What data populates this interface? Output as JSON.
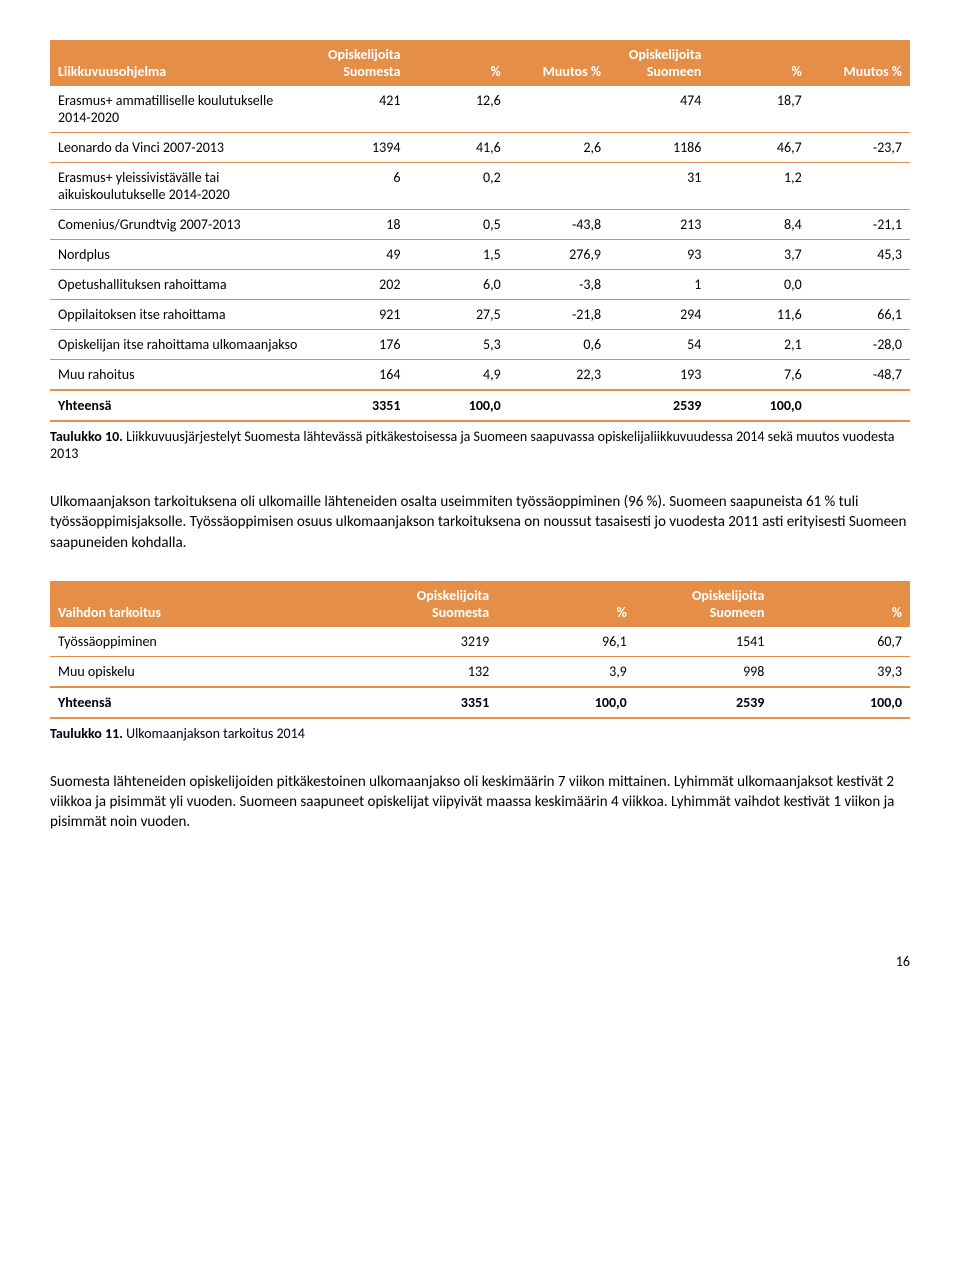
{
  "table1": {
    "headers": [
      "Liikkuvuusohjelma",
      "Opiskelijoita Suomesta",
      "%",
      "Muutos %",
      "Opiskelijoita Suomeen",
      "%",
      "Muutos %"
    ],
    "rows": [
      [
        "Erasmus+ ammatilliselle koulutukselle 2014-2020",
        "421",
        "12,6",
        "",
        "474",
        "18,7",
        ""
      ],
      [
        "Leonardo da Vinci 2007-2013",
        "1394",
        "41,6",
        "2,6",
        "1186",
        "46,7",
        "-23,7"
      ],
      [
        "Erasmus+ yleissivistävälle tai aikuiskoulutukselle 2014-2020",
        "6",
        "0,2",
        "",
        "31",
        "1,2",
        ""
      ],
      [
        "Comenius/Grundtvig 2007-2013",
        "18",
        "0,5",
        "-43,8",
        "213",
        "8,4",
        "-21,1"
      ],
      [
        "Nordplus",
        "49",
        "1,5",
        "276,9",
        "93",
        "3,7",
        "45,3"
      ],
      [
        "Opetushallituksen rahoittama",
        "202",
        "6,0",
        "-3,8",
        "1",
        "0,0",
        ""
      ],
      [
        "Oppilaitoksen itse rahoittama",
        "921",
        "27,5",
        "-21,8",
        "294",
        "11,6",
        "66,1"
      ],
      [
        "Opiskelijan itse rahoittama ulkomaanjakso",
        "176",
        "5,3",
        "0,6",
        "54",
        "2,1",
        "-28,0"
      ],
      [
        "Muu rahoitus",
        "164",
        "4,9",
        "22,3",
        "193",
        "7,6",
        "-48,7"
      ]
    ],
    "total": [
      "Yhteensä",
      "3351",
      "100,0",
      "",
      "2539",
      "100,0",
      ""
    ]
  },
  "caption1_bold": "Taulukko 10.",
  "caption1_rest": " Liikkuvuusjärjestelyt Suomesta lähtevässä pitkäkestoisessa ja Suomeen saapuvassa opiskelijaliikkuvuudessa 2014 sekä muutos vuodesta 2013",
  "para1": "Ulkomaanjakson tarkoituksena oli ulkomaille lähteneiden osalta useimmiten työssäoppiminen (96 %). Suomeen saapuneista 61 % tuli työssäoppimisjaksolle. Työssäoppimisen osuus ulkomaanjakson tarkoituksena on noussut tasaisesti jo vuodesta 2011 asti erityisesti Suomeen saapuneiden kohdalla.",
  "table2": {
    "headers": [
      "Vaihdon tarkoitus",
      "Opiskelijoita Suomesta",
      "%",
      "Opiskelijoita Suomeen",
      "%"
    ],
    "rows": [
      [
        "Työssäoppiminen",
        "3219",
        "96,1",
        "1541",
        "60,7"
      ],
      [
        "Muu opiskelu",
        "132",
        "3,9",
        "998",
        "39,3"
      ]
    ],
    "total": [
      "Yhteensä",
      "3351",
      "100,0",
      "2539",
      "100,0"
    ]
  },
  "caption2_bold": "Taulukko 11.",
  "caption2_rest": " Ulkomaanjakson tarkoitus 2014",
  "para2": "Suomesta lähteneiden opiskelijoiden pitkäkestoinen ulkomaanjakso oli keskimäärin 7 viikon mittainen. Lyhimmät ulkomaanjaksot kestivät 2 viikkoa ja pisimmät yli vuoden. Suomeen saapuneet opiskelijat viipyivät maassa keskimäärin 4 viikkoa. Lyhimmät vaihdot kestivät 1 viikon ja pisimmät noin vuoden.",
  "page_number": "16",
  "colors": {
    "header_bg": "#e48e47",
    "header_text": "#ffffff",
    "row_border": "#e48e47"
  }
}
